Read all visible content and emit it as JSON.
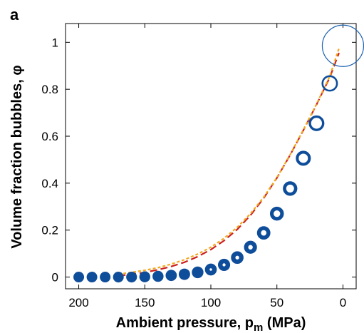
{
  "chart_data": {
    "type": "scatter",
    "panel_label": "a",
    "xlabel": {
      "main": "Ambient pressure, p",
      "subscript": "m",
      "suffix": " (MPa)"
    },
    "ylabel": "Volume fraction bubbles, φ",
    "xlim": [
      210,
      -10
    ],
    "ylim": [
      -0.05,
      1.08
    ],
    "x_reversed": true,
    "x_ticks": [
      200,
      150,
      100,
      50,
      0
    ],
    "y_ticks": [
      0,
      0.2,
      0.4,
      0.6,
      0.8,
      1
    ],
    "x_tick_labels": [
      "200",
      "150",
      "100",
      "50",
      "0"
    ],
    "y_tick_labels": [
      "0",
      "0.2",
      "0.4",
      "0.6",
      "0.8",
      "1"
    ],
    "grid": false,
    "legend": "none",
    "colors": {
      "markers": "#0e4d9a",
      "red_dashed": "#cc1f1f",
      "orange_dashed": "#f2a91c",
      "last_circle": "#1e63b0"
    },
    "series": [
      {
        "kind": "markers",
        "x": [
          200,
          190,
          180,
          170,
          160,
          150,
          140,
          130,
          120,
          110,
          100,
          90,
          80,
          70,
          60,
          50,
          40,
          30,
          20,
          10,
          0
        ],
        "y": [
          0,
          0,
          0,
          0,
          0,
          0.001,
          0.003,
          0.007,
          0.012,
          0.02,
          0.032,
          0.052,
          0.083,
          0.127,
          0.188,
          0.27,
          0.377,
          0.506,
          0.655,
          0.825,
          0.985
        ],
        "sizes": [
          1,
          1,
          1,
          1,
          1,
          1,
          1,
          1,
          1,
          1,
          1,
          1,
          1,
          1,
          1,
          1,
          1,
          1,
          1,
          1,
          3.2
        ]
      },
      {
        "kind": "line",
        "style": "long-dash",
        "color": "red",
        "x": [
          170,
          160,
          150,
          140,
          130,
          120,
          110,
          100,
          90,
          80,
          70,
          60,
          50,
          40,
          30,
          20,
          10,
          3
        ],
        "y": [
          0.005,
          0.012,
          0.02,
          0.031,
          0.045,
          0.063,
          0.087,
          0.117,
          0.155,
          0.203,
          0.263,
          0.336,
          0.422,
          0.52,
          0.625,
          0.735,
          0.85,
          0.955
        ]
      },
      {
        "kind": "line",
        "style": "short-dash",
        "color": "orange",
        "x": [
          170,
          160,
          150,
          140,
          130,
          120,
          110,
          100,
          90,
          80,
          70,
          60,
          50,
          40,
          30,
          20,
          10,
          3
        ],
        "y": [
          0.012,
          0.02,
          0.029,
          0.04,
          0.055,
          0.074,
          0.098,
          0.127,
          0.165,
          0.212,
          0.27,
          0.34,
          0.424,
          0.521,
          0.627,
          0.737,
          0.855,
          0.975
        ]
      }
    ]
  }
}
